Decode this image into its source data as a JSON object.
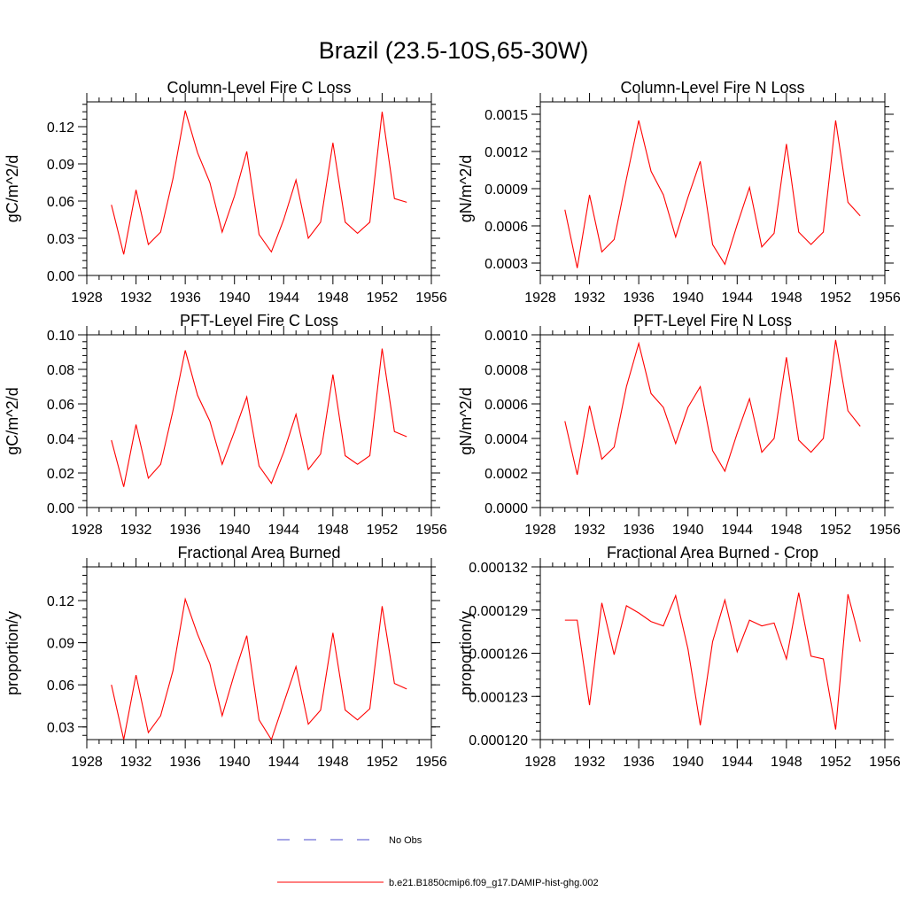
{
  "title": "Brazil (23.5-10S,65-30W)",
  "legend": {
    "placement": "bottom-center",
    "items": [
      {
        "label": "No Obs",
        "color": "#4b4bcc",
        "style": "dashed"
      },
      {
        "label": "b.e21.B1850cmip6.f09_g17.DAMIP-hist-ghg.002",
        "color": "#ff0000",
        "style": "solid"
      }
    ]
  },
  "chart_data": [
    {
      "type": "line",
      "title": "Column-Level Fire C Loss",
      "ylabel": "gC/m^2/d",
      "xlim": [
        1928,
        1956
      ],
      "ylim": [
        0,
        0.14
      ],
      "xticks": [
        1928,
        1932,
        1936,
        1940,
        1944,
        1948,
        1952,
        1956
      ],
      "xtick_labels": [
        "1928",
        "1932",
        "1936",
        "1940",
        "1944",
        "1948",
        "1952",
        "1956"
      ],
      "yticks": [
        0,
        0.03,
        0.06,
        0.09,
        0.12
      ],
      "ytick_labels": [
        "0.00",
        "0.03",
        "0.06",
        "0.09",
        "0.12"
      ],
      "x": [
        1930,
        1931,
        1932,
        1933,
        1934,
        1935,
        1936,
        1937,
        1938,
        1939,
        1940,
        1941,
        1942,
        1943,
        1944,
        1945,
        1946,
        1947,
        1948,
        1949,
        1950,
        1951,
        1952,
        1953,
        1954
      ],
      "series": [
        {
          "color": "#ff0000",
          "values": [
            0.057,
            0.017,
            0.069,
            0.025,
            0.035,
            0.078,
            0.133,
            0.099,
            0.075,
            0.035,
            0.064,
            0.1,
            0.033,
            0.019,
            0.045,
            0.077,
            0.03,
            0.043,
            0.107,
            0.043,
            0.034,
            0.043,
            0.132,
            0.062,
            0.059
          ]
        }
      ]
    },
    {
      "type": "line",
      "title": "Column-Level Fire N Loss",
      "ylabel": "gN/m^2/d",
      "xlim": [
        1928,
        1956
      ],
      "ylim": [
        0.0002,
        0.0016
      ],
      "xticks": [
        1928,
        1932,
        1936,
        1940,
        1944,
        1948,
        1952,
        1956
      ],
      "xtick_labels": [
        "1928",
        "1932",
        "1936",
        "1940",
        "1944",
        "1948",
        "1952",
        "1956"
      ],
      "yticks": [
        0.0003,
        0.0006,
        0.0009,
        0.0012,
        0.0015
      ],
      "ytick_labels": [
        "0.0003",
        "0.0006",
        "0.0009",
        "0.0012",
        "0.0015"
      ],
      "x": [
        1930,
        1931,
        1932,
        1933,
        1934,
        1935,
        1936,
        1937,
        1938,
        1939,
        1940,
        1941,
        1942,
        1943,
        1944,
        1945,
        1946,
        1947,
        1948,
        1949,
        1950,
        1951,
        1952,
        1953,
        1954
      ],
      "series": [
        {
          "color": "#ff0000",
          "values": [
            0.00073,
            0.00026,
            0.00085,
            0.00039,
            0.00049,
            0.00098,
            0.00145,
            0.00104,
            0.00085,
            0.00051,
            0.00083,
            0.00112,
            0.00045,
            0.00029,
            0.00061,
            0.00091,
            0.00043,
            0.00054,
            0.00126,
            0.00055,
            0.00045,
            0.00055,
            0.00145,
            0.00079,
            0.00068
          ]
        }
      ]
    },
    {
      "type": "line",
      "title": "PFT-Level Fire C Loss",
      "ylabel": "gC/m^2/d",
      "xlim": [
        1928,
        1956
      ],
      "ylim": [
        0,
        0.1
      ],
      "xticks": [
        1928,
        1932,
        1936,
        1940,
        1944,
        1948,
        1952,
        1956
      ],
      "xtick_labels": [
        "1928",
        "1932",
        "1936",
        "1940",
        "1944",
        "1948",
        "1952",
        "1956"
      ],
      "yticks": [
        0,
        0.02,
        0.04,
        0.06,
        0.08,
        0.1
      ],
      "ytick_labels": [
        "0.00",
        "0.02",
        "0.04",
        "0.06",
        "0.08",
        "0.10"
      ],
      "x": [
        1930,
        1931,
        1932,
        1933,
        1934,
        1935,
        1936,
        1937,
        1938,
        1939,
        1940,
        1941,
        1942,
        1943,
        1944,
        1945,
        1946,
        1947,
        1948,
        1949,
        1950,
        1951,
        1952,
        1953,
        1954
      ],
      "series": [
        {
          "color": "#ff0000",
          "values": [
            0.039,
            0.012,
            0.048,
            0.017,
            0.025,
            0.056,
            0.091,
            0.065,
            0.05,
            0.025,
            0.044,
            0.064,
            0.024,
            0.014,
            0.032,
            0.054,
            0.022,
            0.031,
            0.077,
            0.03,
            0.025,
            0.03,
            0.092,
            0.044,
            0.041
          ]
        }
      ]
    },
    {
      "type": "line",
      "title": "PFT-Level Fire N Loss",
      "ylabel": "gN/m^2/d",
      "xlim": [
        1928,
        1956
      ],
      "ylim": [
        0,
        0.001
      ],
      "xticks": [
        1928,
        1932,
        1936,
        1940,
        1944,
        1948,
        1952,
        1956
      ],
      "xtick_labels": [
        "1928",
        "1932",
        "1936",
        "1940",
        "1944",
        "1948",
        "1952",
        "1956"
      ],
      "yticks": [
        0,
        0.0002,
        0.0004,
        0.0006,
        0.0008,
        0.001
      ],
      "ytick_labels": [
        "0.0000",
        "0.0002",
        "0.0004",
        "0.0006",
        "0.0008",
        "0.0010"
      ],
      "x": [
        1930,
        1931,
        1932,
        1933,
        1934,
        1935,
        1936,
        1937,
        1938,
        1939,
        1940,
        1941,
        1942,
        1943,
        1944,
        1945,
        1946,
        1947,
        1948,
        1949,
        1950,
        1951,
        1952,
        1953,
        1954
      ],
      "series": [
        {
          "color": "#ff0000",
          "values": [
            0.0005,
            0.00019,
            0.00059,
            0.00028,
            0.00035,
            0.0007,
            0.00095,
            0.00066,
            0.00058,
            0.00037,
            0.00058,
            0.0007,
            0.00033,
            0.00021,
            0.00043,
            0.00063,
            0.00032,
            0.0004,
            0.00087,
            0.00039,
            0.00032,
            0.0004,
            0.00097,
            0.00056,
            0.00047
          ]
        }
      ]
    },
    {
      "type": "line",
      "title": "Fractional Area Burned",
      "ylabel": "proportion/y",
      "xlim": [
        1928,
        1956
      ],
      "ylim": [
        0.021,
        0.144
      ],
      "xticks": [
        1928,
        1932,
        1936,
        1940,
        1944,
        1948,
        1952,
        1956
      ],
      "xtick_labels": [
        "1928",
        "1932",
        "1936",
        "1940",
        "1944",
        "1948",
        "1952",
        "1956"
      ],
      "yticks": [
        0.03,
        0.06,
        0.09,
        0.12
      ],
      "ytick_labels": [
        "0.03",
        "0.06",
        "0.09",
        "0.12"
      ],
      "x": [
        1930,
        1931,
        1932,
        1933,
        1934,
        1935,
        1936,
        1937,
        1938,
        1939,
        1940,
        1941,
        1942,
        1943,
        1944,
        1945,
        1946,
        1947,
        1948,
        1949,
        1950,
        1951,
        1952,
        1953,
        1954
      ],
      "series": [
        {
          "color": "#ff0000",
          "values": [
            0.06,
            0.021,
            0.067,
            0.026,
            0.038,
            0.07,
            0.121,
            0.096,
            0.075,
            0.038,
            0.068,
            0.095,
            0.035,
            0.021,
            0.047,
            0.073,
            0.032,
            0.042,
            0.097,
            0.042,
            0.035,
            0.043,
            0.116,
            0.061,
            0.057
          ]
        }
      ]
    },
    {
      "type": "line",
      "title": "Fractional Area Burned - Crop",
      "ylabel": "proportion/y",
      "xlim": [
        1928,
        1956
      ],
      "ylim": [
        0.00012,
        0.000132
      ],
      "xticks": [
        1928,
        1932,
        1936,
        1940,
        1944,
        1948,
        1952,
        1956
      ],
      "xtick_labels": [
        "1928",
        "1932",
        "1936",
        "1940",
        "1944",
        "1948",
        "1952",
        "1956"
      ],
      "yticks": [
        0.00012,
        0.000123,
        0.000126,
        0.000129,
        0.000132
      ],
      "ytick_labels": [
        "0.000120",
        "0.000123",
        "0.000126",
        "0.000129",
        "0.000132"
      ],
      "x": [
        1930,
        1931,
        1932,
        1933,
        1934,
        1935,
        1936,
        1937,
        1938,
        1939,
        1940,
        1941,
        1942,
        1943,
        1944,
        1945,
        1946,
        1947,
        1948,
        1949,
        1950,
        1951,
        1952,
        1953,
        1954
      ],
      "series": [
        {
          "color": "#ff0000",
          "values": [
            0.0001283,
            0.0001283,
            0.0001224,
            0.0001295,
            0.0001259,
            0.0001293,
            0.0001288,
            0.0001282,
            0.0001279,
            0.00013,
            0.0001263,
            0.000121,
            0.0001268,
            0.0001297,
            0.0001261,
            0.0001283,
            0.0001279,
            0.0001281,
            0.0001256,
            0.0001302,
            0.0001258,
            0.0001256,
            0.0001207,
            0.0001301,
            0.0001268
          ]
        }
      ]
    }
  ]
}
